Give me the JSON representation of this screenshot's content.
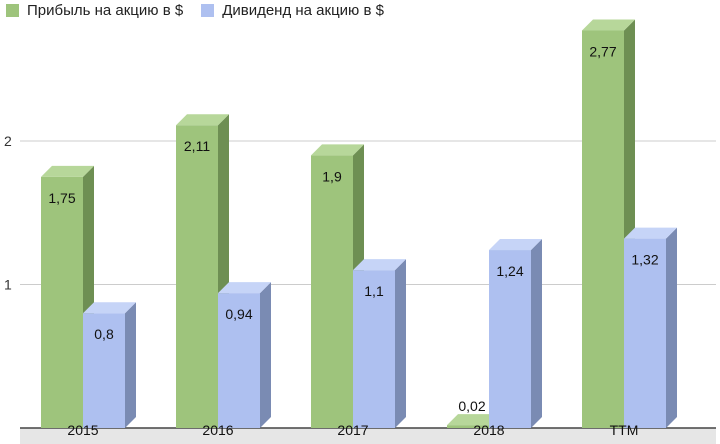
{
  "chart_data": {
    "type": "bar",
    "categories": [
      "2015",
      "2016",
      "2017",
      "2018",
      "TTM"
    ],
    "series": [
      {
        "name": "Прибыль на акцию в $",
        "values": [
          1.75,
          2.11,
          1.9,
          0.02,
          2.77
        ],
        "labels": [
          "1,75",
          "2,11",
          "1,9",
          "0,02",
          "2,77"
        ],
        "color": "#9ec47c",
        "side_color": "#6e8f53",
        "top_color": "#b7d79a"
      },
      {
        "name": "Дивиденд на акцию в $",
        "values": [
          0.8,
          0.94,
          1.1,
          1.24,
          1.32
        ],
        "labels": [
          "0,8",
          "0,94",
          "1,1",
          "1,24",
          "1,32"
        ],
        "color": "#aec0f0",
        "side_color": "#7a8bb3",
        "top_color": "#c6d4f7"
      }
    ],
    "y_ticks": [
      {
        "value": 1,
        "label": "1"
      },
      {
        "value": 2,
        "label": "2"
      }
    ],
    "ylim": [
      0,
      2.9
    ],
    "grid": true,
    "legend_position": "top-left",
    "small_value_label_color": "#8ab86a"
  }
}
